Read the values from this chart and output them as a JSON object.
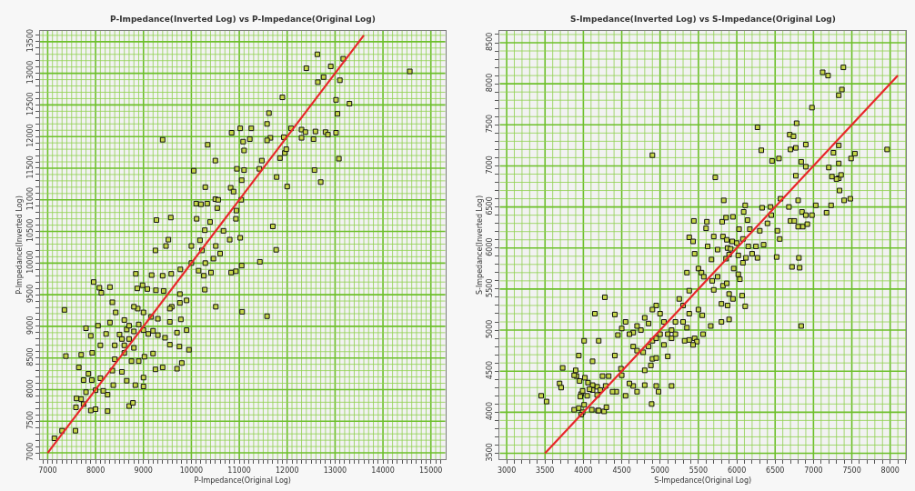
{
  "chart_data": [
    {
      "type": "scatter",
      "title": "P-Impedance(Inverted Log) vs P-Impedance(Original Log)",
      "xlabel": "P-Impedance(Original Log)",
      "ylabel": "P-Impedance(Inverted Log)",
      "xlim": [
        6840,
        15300
      ],
      "ylim": [
        6900,
        13670
      ],
      "xticks": [
        {
          "value": 6900,
          "label": null
        },
        7000,
        {
          "value": 7100,
          "label": null
        },
        {
          "value": 7200,
          "label": null
        },
        {
          "value": 7300,
          "label": null
        },
        {
          "value": 7400,
          "label": null
        },
        {
          "value": 7500,
          "label": null
        },
        {
          "value": 7600,
          "label": null
        },
        {
          "value": 7700,
          "label": null
        },
        {
          "value": 7800,
          "label": null
        },
        {
          "value": 7900,
          "label": null
        },
        8000,
        {
          "value": 8100,
          "label": null
        },
        {
          "value": 8200,
          "label": null
        },
        {
          "value": 8300,
          "label": null
        },
        {
          "value": 8400,
          "label": null
        },
        {
          "value": 8500,
          "label": null
        },
        {
          "value": 8600,
          "label": null
        },
        {
          "value": 8700,
          "label": null
        },
        {
          "value": 8800,
          "label": null
        },
        {
          "value": 8900,
          "label": null
        },
        9000,
        {
          "value": 9100,
          "label": null
        },
        {
          "value": 9200,
          "label": null
        },
        {
          "value": 9300,
          "label": null
        },
        {
          "value": 9400,
          "label": null
        },
        {
          "value": 9500,
          "label": null
        },
        {
          "value": 9600,
          "label": null
        },
        {
          "value": 9700,
          "label": null
        },
        {
          "value": 9800,
          "label": null
        },
        {
          "value": 9900,
          "label": null
        },
        10000,
        {
          "value": 10100,
          "label": null
        },
        {
          "value": 10200,
          "label": null
        },
        {
          "value": 10300,
          "label": null
        },
        {
          "value": 10400,
          "label": null
        },
        {
          "value": 10500,
          "label": null
        },
        {
          "value": 10600,
          "label": null
        },
        {
          "value": 10700,
          "label": null
        },
        {
          "value": 10800,
          "label": null
        },
        {
          "value": 10900,
          "label": null
        },
        11000,
        {
          "value": 11100,
          "label": null
        },
        {
          "value": 11200,
          "label": null
        },
        {
          "value": 11300,
          "label": null
        },
        {
          "value": 11400,
          "label": null
        },
        {
          "value": 11500,
          "label": null
        },
        {
          "value": 11600,
          "label": null
        },
        {
          "value": 11700,
          "label": null
        },
        {
          "value": 11800,
          "label": null
        },
        {
          "value": 11900,
          "label": null
        },
        12000,
        {
          "value": 12100,
          "label": null
        },
        {
          "value": 12200,
          "label": null
        },
        {
          "value": 12300,
          "label": null
        },
        {
          "value": 12400,
          "label": null
        },
        {
          "value": 12500,
          "label": null
        },
        {
          "value": 12600,
          "label": null
        },
        {
          "value": 12700,
          "label": null
        },
        {
          "value": 12800,
          "label": null
        },
        {
          "value": 12900,
          "label": null
        },
        13000,
        {
          "value": 13100,
          "label": null
        },
        {
          "value": 13200,
          "label": null
        },
        {
          "value": 13300,
          "label": null
        },
        {
          "value": 13400,
          "label": null
        },
        {
          "value": 13500,
          "label": null
        },
        {
          "value": 13600,
          "label": null
        },
        {
          "value": 13700,
          "label": null
        },
        {
          "value": 13800,
          "label": null
        },
        {
          "value": 13900,
          "label": null
        },
        14000,
        {
          "value": 14100,
          "label": null
        },
        {
          "value": 14200,
          "label": null
        },
        {
          "value": 14300,
          "label": null
        },
        {
          "value": 14400,
          "label": null
        },
        {
          "value": 14500,
          "label": null
        },
        {
          "value": 14600,
          "label": null
        },
        {
          "value": 14700,
          "label": null
        },
        {
          "value": 14800,
          "label": null
        },
        {
          "value": 14900,
          "label": null
        },
        15000,
        {
          "value": 15100,
          "label": null
        },
        {
          "value": 15200,
          "label": null
        }
      ],
      "yticks": [
        7000,
        {
          "value": 7100,
          "label": null
        },
        {
          "value": 7200,
          "label": null
        },
        {
          "value": 7300,
          "label": null
        },
        {
          "value": 7400,
          "label": null
        },
        7500,
        {
          "value": 7600,
          "label": null
        },
        {
          "value": 7700,
          "label": null
        },
        {
          "value": 7800,
          "label": null
        },
        {
          "value": 7900,
          "label": null
        },
        8000,
        {
          "value": 8100,
          "label": null
        },
        {
          "value": 8200,
          "label": null
        },
        {
          "value": 8300,
          "label": null
        },
        {
          "value": 8400,
          "label": null
        },
        8500,
        {
          "value": 8600,
          "label": null
        },
        {
          "value": 8700,
          "label": null
        },
        {
          "value": 8800,
          "label": null
        },
        {
          "value": 8900,
          "label": null
        },
        9000,
        {
          "value": 9100,
          "label": null
        },
        {
          "value": 9200,
          "label": null
        },
        {
          "value": 9300,
          "label": null
        },
        {
          "value": 9400,
          "label": null
        },
        9500,
        {
          "value": 9600,
          "label": null
        },
        {
          "value": 9700,
          "label": null
        },
        {
          "value": 9800,
          "label": null
        },
        {
          "value": 9900,
          "label": null
        },
        10000,
        {
          "value": 10100,
          "label": null
        },
        {
          "value": 10200,
          "label": null
        },
        {
          "value": 10300,
          "label": null
        },
        {
          "value": 10400,
          "label": null
        },
        10500,
        {
          "value": 10600,
          "label": null
        },
        {
          "value": 10700,
          "label": null
        },
        {
          "value": 10800,
          "label": null
        },
        {
          "value": 10900,
          "label": null
        },
        11000,
        {
          "value": 11100,
          "label": null
        },
        {
          "value": 11200,
          "label": null
        },
        {
          "value": 11300,
          "label": null
        },
        {
          "value": 11400,
          "label": null
        },
        11500,
        {
          "value": 11600,
          "label": null
        },
        {
          "value": 11700,
          "label": null
        },
        {
          "value": 11800,
          "label": null
        },
        {
          "value": 11900,
          "label": null
        },
        12000,
        {
          "value": 12100,
          "label": null
        },
        {
          "value": 12200,
          "label": null
        },
        {
          "value": 12300,
          "label": null
        },
        {
          "value": 12400,
          "label": null
        },
        12500,
        {
          "value": 12600,
          "label": null
        },
        {
          "value": 12700,
          "label": null
        },
        {
          "value": 12800,
          "label": null
        },
        {
          "value": 12900,
          "label": null
        },
        13000,
        {
          "value": 13100,
          "label": null
        },
        {
          "value": 13200,
          "label": null
        },
        {
          "value": 13300,
          "label": null
        },
        {
          "value": 13400,
          "label": null
        },
        13500,
        {
          "value": 13600,
          "label": null
        }
      ],
      "grid": true,
      "marker": "square",
      "series": [
        {
          "color": "#c6d64a",
          "x": [
            12630,
            13170,
            12400,
            14560,
            12910,
            12760,
            12640,
            13100,
            13020,
            13300,
            11900,
            13050,
            11620,
            11580,
            12080,
            12300,
            12380,
            12590,
            12800,
            12850,
            13020,
            12300,
            12550,
            11930,
            11650,
            11580,
            11220,
            11080,
            10840,
            11020,
            11250,
            13080,
            12570,
            12700,
            11780,
            12000,
            11950,
            11980,
            11850,
            11470,
            11420,
            11100,
            11100,
            10950,
            11050,
            10050,
            10340,
            9400,
            10500,
            10290,
            10820,
            10880,
            10500,
            10100,
            10200,
            10330,
            10560,
            11040,
            10940,
            10540,
            10930,
            10110,
            10390,
            9270,
            9570,
            10280,
            10670,
            11700,
            10000,
            10180,
            10510,
            10800,
            11020,
            9520,
            9470,
            9250,
            10220,
            10600,
            11770,
            11430,
            10290,
            10000,
            10460,
            11050,
            10930,
            10830,
            10150,
            10260,
            10410,
            9770,
            9580,
            9400,
            9170,
            8840,
            8980,
            8870,
            9080,
            9260,
            10280,
            9760,
            9420,
            7960,
            8080,
            8120,
            8300,
            8350,
            7350,
            8420,
            9590,
            9760,
            9550,
            10510,
            11060,
            11580,
            9900,
            8880,
            8800,
            9000,
            9160,
            9300,
            9550,
            9780,
            8600,
            8300,
            8050,
            7800,
            7900,
            8220,
            8500,
            8650,
            8700,
            8800,
            8900,
            9000,
            9100,
            9200,
            8700,
            8550,
            8600,
            8800,
            8400,
            8100,
            9300,
            9450,
            9700,
            9900,
            9550,
            9750,
            9950,
            9200,
            9020,
            8900,
            8600,
            8400,
            7930,
            7700,
            7380,
            7650,
            7750,
            7850,
            7920,
            8100,
            8350,
            8550,
            8650,
            8750,
            8830,
            9250,
            9000,
            9400,
            9700,
            9800,
            8000,
            8250,
            7800,
            7600,
            7700,
            8370,
            8160,
            7900,
            7750,
            7590,
            8000,
            8250,
            8700,
            8780,
            7580,
            7300,
            7140,
            9000
          ],
          "values": [
            13300,
            13230,
            13080,
            13030,
            13110,
            12940,
            12860,
            12890,
            12580,
            12520,
            12620,
            12360,
            12370,
            12200,
            12130,
            12110,
            12070,
            12080,
            12070,
            12030,
            12060,
            11980,
            11960,
            11990,
            11980,
            11940,
            11960,
            11920,
            12060,
            12130,
            12130,
            11650,
            11470,
            11280,
            11360,
            11210,
            11740,
            11800,
            11660,
            11620,
            11490,
            11780,
            11470,
            11490,
            11310,
            11460,
            11870,
            11950,
            11620,
            11200,
            11190,
            11130,
            11010,
            10940,
            10930,
            10940,
            11000,
            11000,
            10830,
            10870,
            10700,
            10700,
            10650,
            10680,
            10720,
            10520,
            10510,
            10580,
            10270,
            10360,
            10270,
            10370,
            10400,
            10370,
            10270,
            10200,
            10200,
            10150,
            10210,
            10020,
            10000,
            10000,
            10070,
            9960,
            9870,
            9850,
            9880,
            9800,
            9850,
            9900,
            9830,
            9800,
            9810,
            9830,
            9650,
            9600,
            9590,
            9570,
            9580,
            9510,
            9560,
            9700,
            9610,
            9530,
            9620,
            9380,
            9260,
            9220,
            9310,
            9370,
            9280,
            9310,
            9230,
            9160,
            9410,
            9280,
            9310,
            9220,
            9150,
            9120,
            9070,
            9110,
            9100,
            9060,
            9010,
            8970,
            8850,
            8880,
            8870,
            8950,
            9010,
            8920,
            9030,
            8940,
            8880,
            8930,
            8800,
            8800,
            8700,
            8660,
            8700,
            8700,
            8860,
            8820,
            8900,
            8940,
            8710,
            8680,
            8630,
            8570,
            8520,
            8450,
            8580,
            8480,
            8580,
            8550,
            8530,
            8350,
            8150,
            8250,
            8150,
            8180,
            8300,
            8280,
            8140,
            8450,
            8070,
            8320,
            8190,
            8350,
            8330,
            8420,
            7990,
            7920,
            7960,
            7860,
            7850,
            8070,
            7980,
            7670,
            7770,
            7720,
            7690,
            7660,
            7740,
            7790,
            7350,
            7350,
            7230,
            8050
          ]
        },
        {
          "type": "line",
          "marker": "none",
          "color": "#e8262a",
          "x": [
            7000,
            13600
          ],
          "values": [
            7000,
            13600
          ]
        }
      ]
    },
    {
      "type": "scatter",
      "title": "S-Impedance(Inverted Log) vs S-Impedance(Original Log)",
      "xlabel": "S-Impedance(Original Log)",
      "ylabel": "S-Impedance(Inverted Log)",
      "xlim": [
        2910,
        8205
      ],
      "ylim": [
        3428,
        8644
      ],
      "xticks": [
        3000,
        {
          "value": 3100,
          "label": null
        },
        {
          "value": 3200,
          "label": null
        },
        {
          "value": 3300,
          "label": null
        },
        {
          "value": 3400,
          "label": null
        },
        3500,
        {
          "value": 3600,
          "label": null
        },
        {
          "value": 3700,
          "label": null
        },
        {
          "value": 3800,
          "label": null
        },
        {
          "value": 3900,
          "label": null
        },
        4000,
        {
          "value": 4100,
          "label": null
        },
        {
          "value": 4200,
          "label": null
        },
        {
          "value": 4300,
          "label": null
        },
        {
          "value": 4400,
          "label": null
        },
        4500,
        {
          "value": 4600,
          "label": null
        },
        {
          "value": 4700,
          "label": null
        },
        {
          "value": 4800,
          "label": null
        },
        {
          "value": 4900,
          "label": null
        },
        5000,
        {
          "value": 5100,
          "label": null
        },
        {
          "value": 5200,
          "label": null
        },
        {
          "value": 5300,
          "label": null
        },
        {
          "value": 5400,
          "label": null
        },
        5500,
        {
          "value": 5600,
          "label": null
        },
        {
          "value": 5700,
          "label": null
        },
        {
          "value": 5800,
          "label": null
        },
        {
          "value": 5900,
          "label": null
        },
        6000,
        {
          "value": 6100,
          "label": null
        },
        {
          "value": 6200,
          "label": null
        },
        {
          "value": 6300,
          "label": null
        },
        {
          "value": 6400,
          "label": null
        },
        6500,
        {
          "value": 6600,
          "label": null
        },
        {
          "value": 6700,
          "label": null
        },
        {
          "value": 6800,
          "label": null
        },
        {
          "value": 6900,
          "label": null
        },
        7000,
        {
          "value": 7100,
          "label": null
        },
        {
          "value": 7200,
          "label": null
        },
        {
          "value": 7300,
          "label": null
        },
        {
          "value": 7400,
          "label": null
        },
        7500,
        {
          "value": 7600,
          "label": null
        },
        {
          "value": 7700,
          "label": null
        },
        {
          "value": 7800,
          "label": null
        },
        {
          "value": 7900,
          "label": null
        },
        8000,
        {
          "value": 8100,
          "label": null
        },
        {
          "value": 8200,
          "label": null
        }
      ],
      "yticks": [
        3500,
        {
          "value": 3600,
          "label": null
        },
        {
          "value": 3700,
          "label": null
        },
        {
          "value": 3800,
          "label": null
        },
        {
          "value": 3900,
          "label": null
        },
        4000,
        {
          "value": 4100,
          "label": null
        },
        {
          "value": 4200,
          "label": null
        },
        {
          "value": 4300,
          "label": null
        },
        {
          "value": 4400,
          "label": null
        },
        4500,
        {
          "value": 4600,
          "label": null
        },
        {
          "value": 4700,
          "label": null
        },
        {
          "value": 4800,
          "label": null
        },
        {
          "value": 4900,
          "label": null
        },
        5000,
        {
          "value": 5100,
          "label": null
        },
        {
          "value": 5200,
          "label": null
        },
        {
          "value": 5300,
          "label": null
        },
        {
          "value": 5400,
          "label": null
        },
        5500,
        {
          "value": 5600,
          "label": null
        },
        {
          "value": 5700,
          "label": null
        },
        {
          "value": 5800,
          "label": null
        },
        {
          "value": 5900,
          "label": null
        },
        6000,
        {
          "value": 6100,
          "label": null
        },
        {
          "value": 6200,
          "label": null
        },
        {
          "value": 6300,
          "label": null
        },
        {
          "value": 6400,
          "label": null
        },
        6500,
        {
          "value": 6600,
          "label": null
        },
        {
          "value": 6700,
          "label": null
        },
        {
          "value": 6800,
          "label": null
        },
        {
          "value": 6900,
          "label": null
        },
        7000,
        {
          "value": 7100,
          "label": null
        },
        {
          "value": 7200,
          "label": null
        },
        {
          "value": 7300,
          "label": null
        },
        {
          "value": 7400,
          "label": null
        },
        7500,
        {
          "value": 7600,
          "label": null
        },
        {
          "value": 7700,
          "label": null
        },
        {
          "value": 7800,
          "label": null
        },
        {
          "value": 7900,
          "label": null
        },
        8000,
        {
          "value": 8100,
          "label": null
        },
        {
          "value": 8200,
          "label": null
        },
        {
          "value": 8300,
          "label": null
        },
        {
          "value": 8400,
          "label": null
        },
        8500,
        {
          "value": 8600,
          "label": null
        }
      ],
      "grid": true,
      "marker": "square",
      "series": [
        {
          "color": "#c6d64a",
          "x": [
            7390,
            7120,
            7190,
            7370,
            7330,
            6980,
            6270,
            6780,
            6690,
            6740,
            6900,
            6320,
            6700,
            6770,
            7330,
            7260,
            7540,
            7490,
            7960,
            6460,
            6550,
            6840,
            6900,
            7330,
            7200,
            4900,
            5720,
            6770,
            7330,
            7300,
            7240,
            7360,
            7340,
            7400,
            7480,
            7030,
            7230,
            6110,
            6570,
            6800,
            5830,
            6680,
            6440,
            6330,
            6850,
            6900,
            6980,
            7170,
            6450,
            6400,
            6530,
            6700,
            6750,
            6860,
            6800,
            6920,
            5440,
            5610,
            5810,
            5860,
            5950,
            6090,
            6140,
            6030,
            5600,
            6300,
            6170,
            5380,
            5430,
            5700,
            5820,
            5870,
            5940,
            5880,
            6000,
            6080,
            6150,
            6250,
            6350,
            6560,
            6520,
            6810,
            5450,
            5620,
            5750,
            5920,
            5900,
            6020,
            6120,
            6200,
            6270,
            6080,
            5960,
            5670,
            5860,
            6020,
            6040,
            5500,
            5350,
            5540,
            5570,
            5680,
            5700,
            5750,
            5820,
            5870,
            5900,
            5950,
            6070,
            6110,
            5880,
            5800,
            6720,
            6820,
            6840,
            5900,
            5800,
            5660,
            5560,
            5550,
            5500,
            5380,
            5250,
            5300,
            5380,
            5300,
            5350,
            5450,
            5380,
            5480,
            5430,
            5320,
            5200,
            5150,
            5100,
            5050,
            5000,
            4950,
            4900,
            4850,
            4800,
            4750,
            4700,
            4650,
            4600,
            4550,
            4500,
            4450,
            4280,
            4150,
            4410,
            4200,
            4010,
            4650,
            4700,
            4780,
            4850,
            4900,
            4950,
            5000,
            5050,
            5100,
            5150,
            5200,
            5150,
            4900,
            4950,
            4880,
            4800,
            4700,
            4650,
            4600,
            4800,
            4950,
            4980,
            4890,
            4550,
            4500,
            4490,
            4430,
            4380,
            4410,
            4250,
            4290,
            4180,
            4120,
            4120,
            4180,
            4220,
            4120,
            4080,
            4050,
            4060,
            4020,
            3970,
            3990,
            3960,
            3950,
            3940,
            3910,
            3880,
            3900,
            3730,
            3690,
            3710,
            3450,
            3520,
            3880,
            3940,
            3990,
            3970,
            4010,
            4110,
            4190,
            4200,
            4270,
            4300,
            4330
          ],
          "values": [
            8200,
            8140,
            8100,
            7930,
            7860,
            7710,
            7470,
            7520,
            7380,
            7360,
            7260,
            7190,
            7200,
            7220,
            7250,
            7160,
            7150,
            7090,
            7200,
            7060,
            7090,
            7050,
            6990,
            7030,
            6980,
            7130,
            6860,
            6880,
            6850,
            6840,
            6870,
            6890,
            6700,
            6580,
            6600,
            6520,
            6520,
            6520,
            6600,
            6580,
            6580,
            6500,
            6500,
            6490,
            6440,
            6400,
            6400,
            6430,
            6400,
            6300,
            6210,
            6330,
            6330,
            6260,
            6260,
            6290,
            6330,
            6320,
            6320,
            6370,
            6380,
            6440,
            6340,
            6230,
            6240,
            6210,
            6230,
            6130,
            6080,
            6140,
            6140,
            6100,
            6080,
            6000,
            6060,
            6110,
            6020,
            6020,
            6040,
            6110,
            5890,
            5880,
            5930,
            6020,
            5980,
            5990,
            5920,
            5910,
            5880,
            5930,
            5880,
            5820,
            5750,
            5860,
            5870,
            5680,
            5620,
            5750,
            5700,
            5700,
            5650,
            5600,
            5490,
            5650,
            5540,
            5570,
            5440,
            5380,
            5420,
            5290,
            5300,
            5320,
            5770,
            5760,
            5050,
            5130,
            5100,
            5050,
            4950,
            5180,
            5250,
            5480,
            5380,
            5300,
            5200,
            5100,
            5030,
            4900,
            4880,
            4860,
            4820,
            4870,
            5100,
            5000,
            4950,
            5100,
            5200,
            5300,
            5250,
            5080,
            5150,
            5000,
            5050,
            4970,
            4950,
            5100,
            5020,
            4940,
            5400,
            5200,
            5190,
            4870,
            4870,
            4800,
            4750,
            4730,
            4800,
            4870,
            4900,
            4950,
            4820,
            4680,
            4900,
            4950,
            4320,
            4650,
            4660,
            4570,
            4510,
            4250,
            4320,
            4350,
            4330,
            4320,
            4250,
            4100,
            4200,
            4450,
            4530,
            4250,
            4250,
            4690,
            4440,
            4320,
            4310,
            4620,
            4330,
            4210,
            4270,
            4270,
            4280,
            4200,
            4360,
            4420,
            4220,
            4260,
            4190,
            4380,
            4690,
            4440,
            4450,
            4510,
            4540,
            4350,
            4300,
            4200,
            4130,
            4030,
            4050,
            4000,
            3970,
            4090,
            4030,
            4020,
            4020,
            4010,
            4060,
            4440
          ]
        },
        {
          "type": "line",
          "marker": "none",
          "color": "#e8262a",
          "x": [
            3500,
            8100
          ],
          "values": [
            3500,
            8100
          ]
        }
      ]
    }
  ]
}
